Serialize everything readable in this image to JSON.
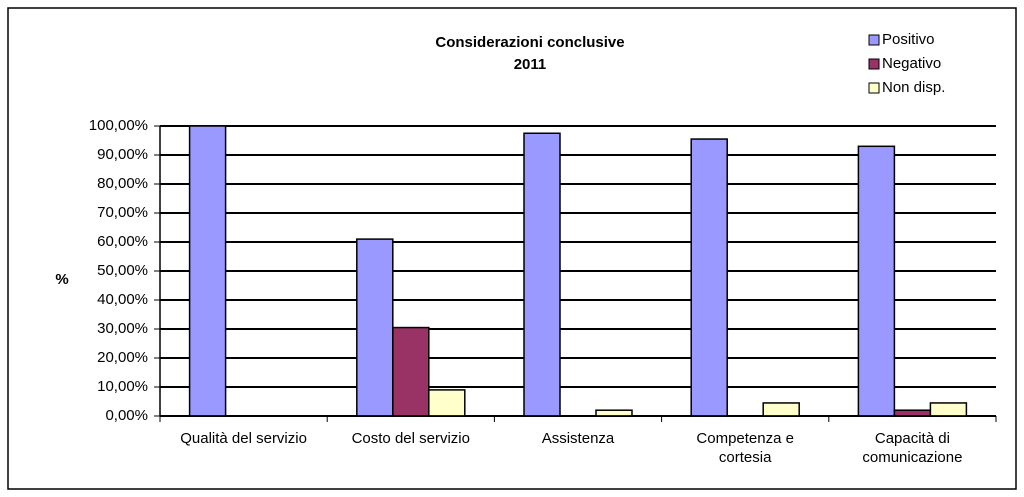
{
  "chart_data": {
    "type": "bar",
    "title": "Considerazioni conclusive",
    "subtitle": "2011",
    "y_label": "%",
    "categories": [
      "Qualità del servizio",
      "Costo del servizio",
      "Assistenza",
      "Competenza e cortesia",
      "Capacità di comunicazione"
    ],
    "series": [
      {
        "name": "Positivo",
        "color": "#9999ff",
        "values": [
          100,
          61,
          97.5,
          95.5,
          93
        ]
      },
      {
        "name": "Negativo",
        "color": "#993366",
        "values": [
          0,
          30.5,
          0,
          0,
          2
        ]
      },
      {
        "name": "Non disp.",
        "color": "#ffffcc",
        "values": [
          0,
          9,
          2,
          4.5,
          4.5
        ]
      }
    ],
    "ylim": [
      0,
      100
    ],
    "yticks": [
      {
        "value": 0,
        "label": "0,00%"
      },
      {
        "value": 10,
        "label": "10,00%"
      },
      {
        "value": 20,
        "label": "20,00%"
      },
      {
        "value": 30,
        "label": "30,00%"
      },
      {
        "value": 40,
        "label": "40,00%"
      },
      {
        "value": 50,
        "label": "50,00%"
      },
      {
        "value": 60,
        "label": "60,00%"
      },
      {
        "value": 70,
        "label": "70,00%"
      },
      {
        "value": 80,
        "label": "80,00%"
      },
      {
        "value": 90,
        "label": "90,00%"
      },
      {
        "value": 100,
        "label": "100,00%"
      }
    ],
    "grid": true,
    "legend": "top-right"
  }
}
